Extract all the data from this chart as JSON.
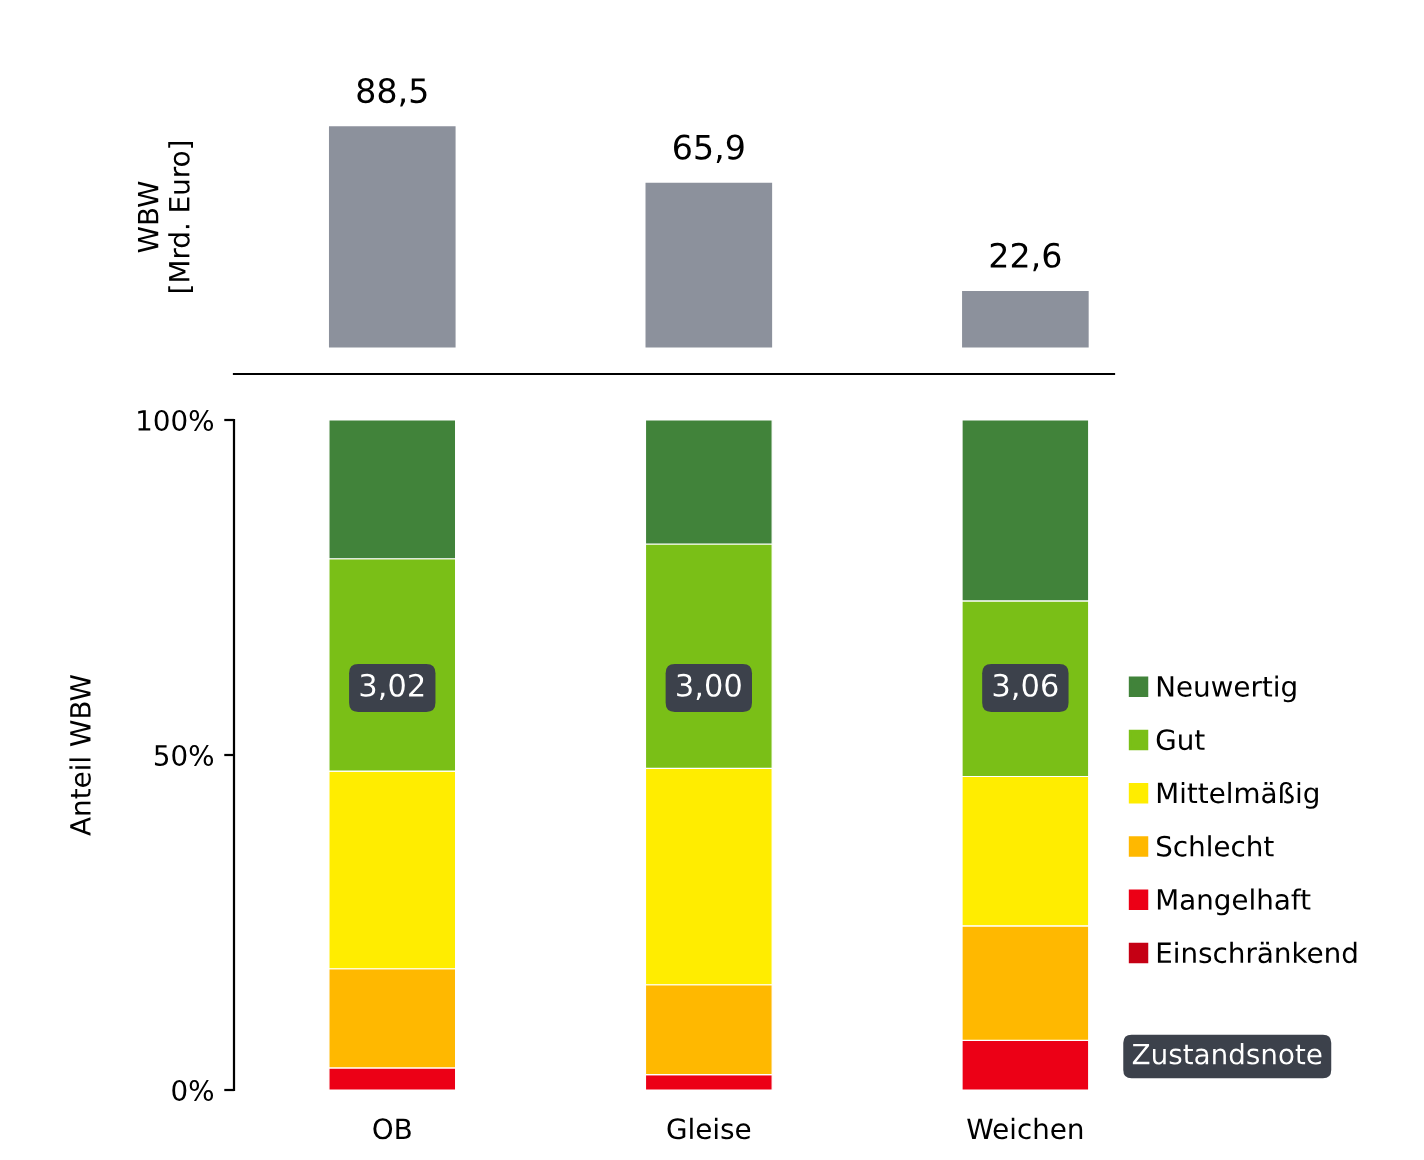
{
  "chart_data": [
    {
      "type": "bar",
      "ylabel": "WBW\n[Mrd. Euro]",
      "categories": [
        null,
        null,
        null
      ],
      "values": [
        88.5,
        65.9,
        22.6
      ],
      "value_labels": [
        "88,5",
        "65,9",
        "22,6"
      ],
      "color": "#8c919c"
    },
    {
      "type": "bar",
      "stacked": true,
      "ylabel": "Anteil WBW",
      "categories": [
        "OB",
        "Gleise",
        "Weichen"
      ],
      "ylim": [
        0,
        100
      ],
      "yticks": [
        {
          "value": 0,
          "label": "0%"
        },
        {
          "value": 50,
          "label": "50%"
        },
        {
          "value": 100,
          "label": "100%"
        }
      ],
      "legend": "right",
      "series": [
        {
          "name": "Einschränkend",
          "color": "#c50014",
          "values": [
            0,
            0,
            0
          ]
        },
        {
          "name": "Mangelhaft",
          "color": "#ec0016",
          "values": [
            3.3,
            2.3,
            7.4
          ]
        },
        {
          "name": "Schlecht",
          "color": "#ffb800",
          "values": [
            14.8,
            13.4,
            17.1
          ]
        },
        {
          "name": "Mittelmäßig",
          "color": "#ffed00",
          "values": [
            29.5,
            32.3,
            22.3
          ]
        },
        {
          "name": "Gut",
          "color": "#7abf17",
          "values": [
            31.7,
            33.5,
            26.2
          ]
        },
        {
          "name": "Neuwertig",
          "color": "#41833a",
          "values": [
            20.7,
            18.5,
            27.0
          ]
        }
      ],
      "annotations": [
        "3,02",
        "3,00",
        "3,06",
        "Zustandsnote"
      ]
    }
  ]
}
